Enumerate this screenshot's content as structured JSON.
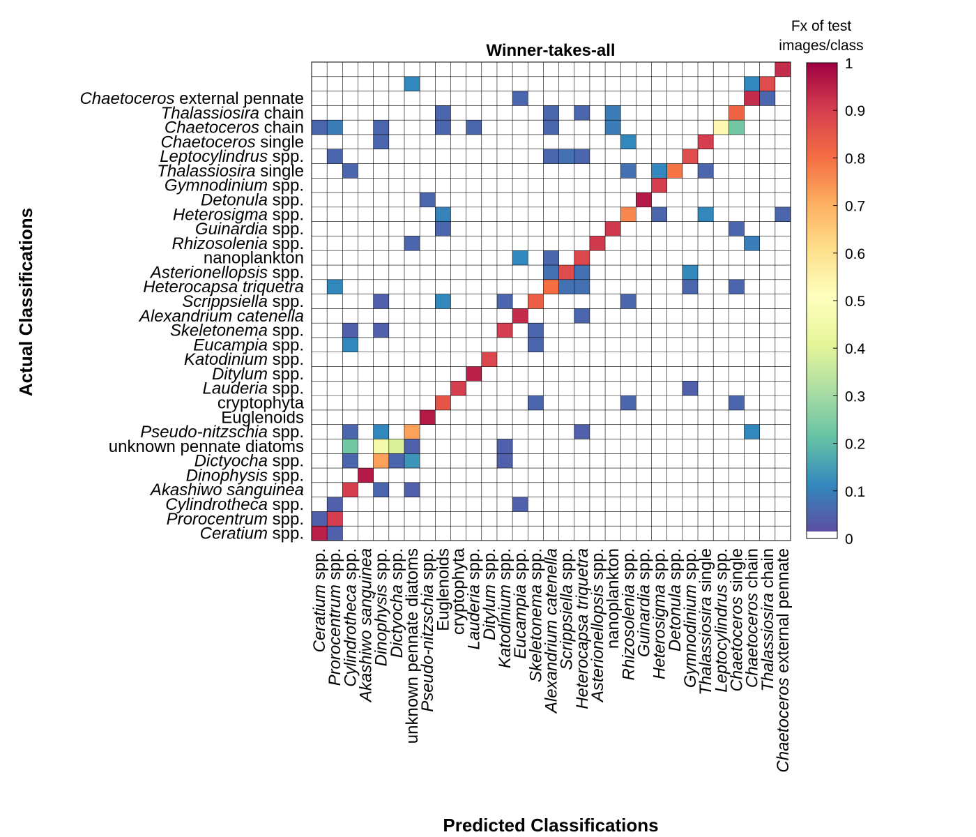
{
  "chart_data": {
    "type": "heatmap",
    "title": "Winner-takes-all",
    "xlabel": "Predicted Classifications",
    "ylabel": "Actual Classifications",
    "colorbar_label": "Fx of test images/class",
    "colorbar_ticks": [
      "0",
      "0.1",
      "0.2",
      "0.3",
      "0.4",
      "0.5",
      "0.6",
      "0.7",
      "0.8",
      "0.9",
      "1"
    ],
    "colorbar_range": [
      0,
      1
    ],
    "colormap": "spectral (reversed)",
    "classes": [
      {
        "italic": "Ceratium",
        "plain": " spp."
      },
      {
        "italic": "Prorocentrum",
        "plain": " spp."
      },
      {
        "italic": "Cylindrotheca",
        "plain": " spp."
      },
      {
        "italic": "Akashiwo sanguinea",
        "plain": ""
      },
      {
        "italic": "Dinophysis",
        "plain": " spp."
      },
      {
        "italic": "Dictyocha",
        "plain": " spp."
      },
      {
        "italic": "",
        "plain": "unknown pennate diatoms"
      },
      {
        "italic": "Pseudo-nitzschia",
        "plain": " spp."
      },
      {
        "italic": "",
        "plain": "Euglenoids"
      },
      {
        "italic": "",
        "plain": "cryptophyta"
      },
      {
        "italic": "Lauderia",
        "plain": " spp."
      },
      {
        "italic": "Ditylum",
        "plain": " spp."
      },
      {
        "italic": "Katodinium",
        "plain": " spp."
      },
      {
        "italic": "Eucampia",
        "plain": " spp."
      },
      {
        "italic": "Skeletonema",
        "plain": " spp."
      },
      {
        "italic": "Alexandrium catenella",
        "plain": ""
      },
      {
        "italic": "Scrippsiella",
        "plain": " spp."
      },
      {
        "italic": "Heterocapsa triquetra",
        "plain": ""
      },
      {
        "italic": "Asterionellopsis",
        "plain": " spp."
      },
      {
        "italic": "",
        "plain": "nanoplankton"
      },
      {
        "italic": "Rhizosolenia",
        "plain": " spp."
      },
      {
        "italic": "Guinardia",
        "plain": " spp."
      },
      {
        "italic": "Heterosigma",
        "plain": " spp."
      },
      {
        "italic": "Detonula",
        "plain": " spp."
      },
      {
        "italic": "Gymnodinium",
        "plain": " spp."
      },
      {
        "italic": "Thalassiosira",
        "plain": " single"
      },
      {
        "italic": "Leptocylindrus",
        "plain": " spp."
      },
      {
        "italic": "Chaetoceros",
        "plain": " single"
      },
      {
        "italic": "Chaetoceros",
        "plain": " chain"
      },
      {
        "italic": "Thalassiosira",
        "plain": " chain"
      },
      {
        "italic": "Chaetoceros",
        "plain": " external pennate"
      }
    ],
    "cells": [
      {
        "actual": 0,
        "predicted": 0,
        "value": 0.95
      },
      {
        "actual": 0,
        "predicted": 1,
        "value": 0.03
      },
      {
        "actual": 1,
        "predicted": 0,
        "value": 0.03
      },
      {
        "actual": 1,
        "predicted": 1,
        "value": 0.9
      },
      {
        "actual": 2,
        "predicted": 1,
        "value": 0.03
      },
      {
        "actual": 2,
        "predicted": 13,
        "value": 0.03
      },
      {
        "actual": 3,
        "predicted": 2,
        "value": 0.9
      },
      {
        "actual": 3,
        "predicted": 4,
        "value": 0.04
      },
      {
        "actual": 3,
        "predicted": 6,
        "value": 0.03
      },
      {
        "actual": 4,
        "predicted": 3,
        "value": 0.96
      },
      {
        "actual": 5,
        "predicted": 2,
        "value": 0.04
      },
      {
        "actual": 5,
        "predicted": 4,
        "value": 0.72
      },
      {
        "actual": 5,
        "predicted": 5,
        "value": 0.04
      },
      {
        "actual": 5,
        "predicted": 6,
        "value": 0.12
      },
      {
        "actual": 5,
        "predicted": 12,
        "value": 0.03
      },
      {
        "actual": 6,
        "predicted": 2,
        "value": 0.22
      },
      {
        "actual": 6,
        "predicted": 4,
        "value": 0.45
      },
      {
        "actual": 6,
        "predicted": 5,
        "value": 0.38
      },
      {
        "actual": 6,
        "predicted": 6,
        "value": 0.03
      },
      {
        "actual": 6,
        "predicted": 12,
        "value": 0.03
      },
      {
        "actual": 7,
        "predicted": 2,
        "value": 0.04
      },
      {
        "actual": 7,
        "predicted": 4,
        "value": 0.1
      },
      {
        "actual": 7,
        "predicted": 6,
        "value": 0.72
      },
      {
        "actual": 7,
        "predicted": 17,
        "value": 0.03
      },
      {
        "actual": 7,
        "predicted": 28,
        "value": 0.1
      },
      {
        "actual": 8,
        "predicted": 7,
        "value": 0.96
      },
      {
        "actual": 9,
        "predicted": 8,
        "value": 0.85
      },
      {
        "actual": 9,
        "predicted": 14,
        "value": 0.04
      },
      {
        "actual": 9,
        "predicted": 20,
        "value": 0.04
      },
      {
        "actual": 9,
        "predicted": 27,
        "value": 0.04
      },
      {
        "actual": 10,
        "predicted": 9,
        "value": 0.9
      },
      {
        "actual": 10,
        "predicted": 24,
        "value": 0.03
      },
      {
        "actual": 11,
        "predicted": 10,
        "value": 0.95
      },
      {
        "actual": 12,
        "predicted": 11,
        "value": 0.88
      },
      {
        "actual": 13,
        "predicted": 2,
        "value": 0.1
      },
      {
        "actual": 13,
        "predicted": 14,
        "value": 0.04
      },
      {
        "actual": 14,
        "predicted": 2,
        "value": 0.03
      },
      {
        "actual": 14,
        "predicted": 4,
        "value": 0.03
      },
      {
        "actual": 14,
        "predicted": 12,
        "value": 0.9
      },
      {
        "actual": 14,
        "predicted": 14,
        "value": 0.04
      },
      {
        "actual": 15,
        "predicted": 13,
        "value": 0.93
      },
      {
        "actual": 15,
        "predicted": 17,
        "value": 0.04
      },
      {
        "actual": 16,
        "predicted": 4,
        "value": 0.03
      },
      {
        "actual": 16,
        "predicted": 8,
        "value": 0.1
      },
      {
        "actual": 16,
        "predicted": 12,
        "value": 0.04
      },
      {
        "actual": 16,
        "predicted": 14,
        "value": 0.83
      },
      {
        "actual": 16,
        "predicted": 20,
        "value": 0.04
      },
      {
        "actual": 17,
        "predicted": 1,
        "value": 0.1
      },
      {
        "actual": 17,
        "predicted": 15,
        "value": 0.8
      },
      {
        "actual": 17,
        "predicted": 16,
        "value": 0.06
      },
      {
        "actual": 17,
        "predicted": 17,
        "value": 0.06
      },
      {
        "actual": 17,
        "predicted": 24,
        "value": 0.04
      },
      {
        "actual": 17,
        "predicted": 27,
        "value": 0.04
      },
      {
        "actual": 18,
        "predicted": 15,
        "value": 0.06
      },
      {
        "actual": 18,
        "predicted": 16,
        "value": 0.87
      },
      {
        "actual": 18,
        "predicted": 17,
        "value": 0.06
      },
      {
        "actual": 18,
        "predicted": 24,
        "value": 0.1
      },
      {
        "actual": 19,
        "predicted": 13,
        "value": 0.1
      },
      {
        "actual": 19,
        "predicted": 15,
        "value": 0.04
      },
      {
        "actual": 19,
        "predicted": 17,
        "value": 0.88
      },
      {
        "actual": 20,
        "predicted": 6,
        "value": 0.04
      },
      {
        "actual": 20,
        "predicted": 18,
        "value": 0.91
      },
      {
        "actual": 20,
        "predicted": 28,
        "value": 0.08
      },
      {
        "actual": 21,
        "predicted": 8,
        "value": 0.04
      },
      {
        "actual": 21,
        "predicted": 19,
        "value": 0.91
      },
      {
        "actual": 21,
        "predicted": 27,
        "value": 0.04
      },
      {
        "actual": 22,
        "predicted": 8,
        "value": 0.09
      },
      {
        "actual": 22,
        "predicted": 20,
        "value": 0.76
      },
      {
        "actual": 22,
        "predicted": 22,
        "value": 0.04
      },
      {
        "actual": 22,
        "predicted": 25,
        "value": 0.1
      },
      {
        "actual": 22,
        "predicted": 30,
        "value": 0.04
      },
      {
        "actual": 23,
        "predicted": 7,
        "value": 0.04
      },
      {
        "actual": 23,
        "predicted": 21,
        "value": 0.96
      },
      {
        "actual": 24,
        "predicted": 22,
        "value": 0.9
      },
      {
        "actual": 25,
        "predicted": 2,
        "value": 0.04
      },
      {
        "actual": 25,
        "predicted": 20,
        "value": 0.06
      },
      {
        "actual": 25,
        "predicted": 22,
        "value": 0.1
      },
      {
        "actual": 25,
        "predicted": 23,
        "value": 0.79
      },
      {
        "actual": 25,
        "predicted": 25,
        "value": 0.04
      },
      {
        "actual": 26,
        "predicted": 1,
        "value": 0.04
      },
      {
        "actual": 26,
        "predicted": 15,
        "value": 0.04
      },
      {
        "actual": 26,
        "predicted": 16,
        "value": 0.06
      },
      {
        "actual": 26,
        "predicted": 17,
        "value": 0.04
      },
      {
        "actual": 26,
        "predicted": 24,
        "value": 0.87
      },
      {
        "actual": 27,
        "predicted": 4,
        "value": 0.04
      },
      {
        "actual": 27,
        "predicted": 20,
        "value": 0.1
      },
      {
        "actual": 27,
        "predicted": 25,
        "value": 0.9
      },
      {
        "actual": 28,
        "predicted": 0,
        "value": 0.04
      },
      {
        "actual": 28,
        "predicted": 1,
        "value": 0.08
      },
      {
        "actual": 28,
        "predicted": 4,
        "value": 0.04
      },
      {
        "actual": 28,
        "predicted": 8,
        "value": 0.04
      },
      {
        "actual": 28,
        "predicted": 10,
        "value": 0.04
      },
      {
        "actual": 28,
        "predicted": 15,
        "value": 0.04
      },
      {
        "actual": 28,
        "predicted": 19,
        "value": 0.08
      },
      {
        "actual": 28,
        "predicted": 26,
        "value": 0.52
      },
      {
        "actual": 28,
        "predicted": 27,
        "value": 0.22
      },
      {
        "actual": 29,
        "predicted": 8,
        "value": 0.04
      },
      {
        "actual": 29,
        "predicted": 15,
        "value": 0.04
      },
      {
        "actual": 29,
        "predicted": 17,
        "value": 0.04
      },
      {
        "actual": 29,
        "predicted": 19,
        "value": 0.08
      },
      {
        "actual": 29,
        "predicted": 27,
        "value": 0.82
      },
      {
        "actual": 30,
        "predicted": 13,
        "value": 0.04
      },
      {
        "actual": 30,
        "predicted": 28,
        "value": 0.93
      },
      {
        "actual": 30,
        "predicted": 29,
        "value": 0.04
      },
      {
        "actual": 31,
        "predicted": 6,
        "value": 0.1
      },
      {
        "actual": 31,
        "predicted": 28,
        "value": 0.1
      },
      {
        "actual": 31,
        "predicted": 29,
        "value": 0.87
      },
      {
        "actual": 32,
        "predicted": 30,
        "value": 0.93
      }
    ],
    "grid": true,
    "colorbar_position": "right"
  }
}
